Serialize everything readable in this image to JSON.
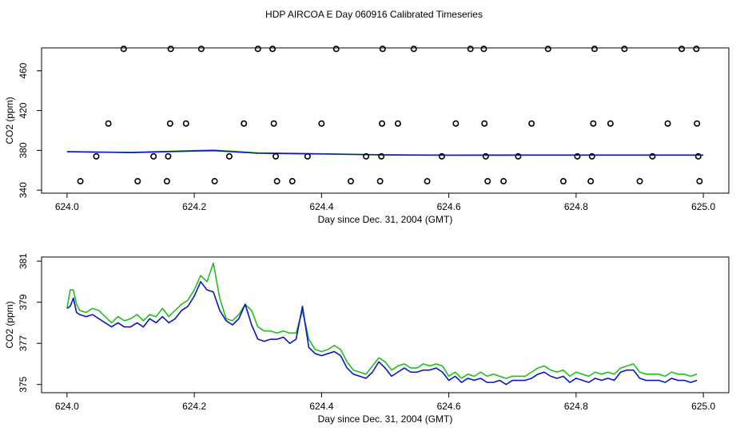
{
  "title": "HDP AIRCOA E  Day 060916  Calibrated Timeseries",
  "colors": {
    "green": "#1fbf1f",
    "blue": "#0a14c8",
    "black": "#000000"
  },
  "chart_data": [
    {
      "type": "line",
      "xlabel": "Day since Dec. 31, 2004 (GMT)",
      "ylabel": "CO2 (ppm)",
      "xlim": [
        624.0,
        625.0
      ],
      "ylim": [
        337,
        483
      ],
      "xticks": [
        624.0,
        624.2,
        624.4,
        624.6,
        624.8,
        625.0
      ],
      "xtick_labels": [
        "624.0",
        "624.2",
        "624.4",
        "624.6",
        "624.8",
        "625.0"
      ],
      "yticks": [
        340,
        380,
        420,
        460
      ],
      "ytick_labels": [
        "340",
        "380",
        "420",
        "460"
      ],
      "grid": false,
      "series": [
        {
          "color": "green",
          "x": [
            624.0,
            624.1,
            624.2,
            624.23,
            624.3,
            624.4,
            624.5,
            624.6,
            624.7,
            624.8,
            624.9,
            625.0
          ],
          "y": [
            378.7,
            378.0,
            379.8,
            380.3,
            377.5,
            376.6,
            375.6,
            375.3,
            375.4,
            375.4,
            375.4,
            375.4
          ]
        },
        {
          "color": "blue",
          "x": [
            624.0,
            624.1,
            624.2,
            624.23,
            624.3,
            624.4,
            624.5,
            624.6,
            624.7,
            624.8,
            624.9,
            625.0
          ],
          "y": [
            378.7,
            377.8,
            379.4,
            379.8,
            377.1,
            376.4,
            375.4,
            375.1,
            375.2,
            375.2,
            375.2,
            375.2
          ]
        }
      ],
      "points": {
        "marker": "open-circle",
        "x": [
          624.021,
          624.046,
          624.065,
          624.089,
          624.111,
          624.136,
          624.157,
          624.159,
          624.162,
          624.163,
          624.187,
          624.211,
          624.232,
          624.255,
          624.278,
          624.3,
          624.323,
          624.325,
          624.328,
          624.33,
          624.354,
          624.378,
          624.4,
          624.423,
          624.446,
          624.47,
          624.492,
          624.494,
          624.495,
          624.496,
          624.52,
          624.545,
          624.566,
          624.589,
          624.611,
          624.634,
          624.655,
          624.656,
          624.658,
          624.661,
          624.686,
          624.709,
          624.73,
          624.756,
          624.78,
          624.802,
          624.823,
          624.825,
          624.827,
          624.829,
          624.854,
          624.876,
          624.9,
          624.92,
          624.944,
          624.966,
          624.989,
          624.99,
          624.992,
          624.994
        ],
        "y": [
          349,
          374,
          407,
          482,
          349,
          374,
          349,
          374,
          407,
          482,
          407,
          482,
          349,
          374,
          407,
          482,
          482,
          407,
          374,
          349,
          349,
          374,
          407,
          482,
          349,
          374,
          349,
          374,
          407,
          482,
          407,
          482,
          349,
          374,
          407,
          482,
          482,
          407,
          374,
          349,
          349,
          374,
          407,
          482,
          349,
          374,
          349,
          374,
          407,
          482,
          407,
          482,
          349,
          374,
          407,
          482,
          482,
          407,
          374,
          349
        ]
      }
    },
    {
      "type": "line",
      "xlabel": "Day since Dec. 31, 2004 (GMT)",
      "ylabel": "CO2 (ppm)",
      "xlim": [
        624.0,
        625.0
      ],
      "ylim": [
        374.6,
        381.2
      ],
      "xticks": [
        624.0,
        624.2,
        624.4,
        624.6,
        624.8,
        625.0
      ],
      "xtick_labels": [
        "624.0",
        "624.2",
        "624.4",
        "624.6",
        "624.8",
        "625.0"
      ],
      "yticks": [
        375,
        377,
        379,
        381
      ],
      "ytick_labels": [
        "375",
        "377",
        "379",
        "381"
      ],
      "grid": false,
      "series": [
        {
          "color": "green",
          "x": [
            624.0,
            624.005,
            624.01,
            624.015,
            624.02,
            624.03,
            624.04,
            624.05,
            624.06,
            624.07,
            624.08,
            624.09,
            624.1,
            624.11,
            624.12,
            624.13,
            624.14,
            624.15,
            624.16,
            624.17,
            624.18,
            624.19,
            624.2,
            624.21,
            624.22,
            624.23,
            624.24,
            624.25,
            624.26,
            624.27,
            624.28,
            624.29,
            624.3,
            624.31,
            624.32,
            624.33,
            624.34,
            624.35,
            624.36,
            624.37,
            624.38,
            624.39,
            624.4,
            624.41,
            624.42,
            624.43,
            624.44,
            624.45,
            624.46,
            624.47,
            624.48,
            624.49,
            624.5,
            624.51,
            624.52,
            624.53,
            624.54,
            624.55,
            624.56,
            624.57,
            624.58,
            624.59,
            624.6,
            624.61,
            624.62,
            624.63,
            624.64,
            624.65,
            624.66,
            624.67,
            624.68,
            624.69,
            624.7,
            624.71,
            624.72,
            624.73,
            624.74,
            624.75,
            624.76,
            624.77,
            624.78,
            624.79,
            624.8,
            624.81,
            624.82,
            624.83,
            624.84,
            624.85,
            624.86,
            624.87,
            624.88,
            624.89,
            624.9,
            624.91,
            624.92,
            624.93,
            624.94,
            624.95,
            624.96,
            624.97,
            624.98,
            624.99
          ],
          "y": [
            378.7,
            379.6,
            379.6,
            378.9,
            378.6,
            378.5,
            378.7,
            378.6,
            378.3,
            378.0,
            378.3,
            378.1,
            378.2,
            378.4,
            378.1,
            378.4,
            378.3,
            378.7,
            378.3,
            378.6,
            378.9,
            379.1,
            379.6,
            380.3,
            380.0,
            380.9,
            379.2,
            378.2,
            378.1,
            378.4,
            378.9,
            378.6,
            377.8,
            377.6,
            377.6,
            377.5,
            377.6,
            377.5,
            377.5,
            378.6,
            377.2,
            376.7,
            376.6,
            376.7,
            376.9,
            376.7,
            376.1,
            375.7,
            375.6,
            375.5,
            375.9,
            376.3,
            376.1,
            375.7,
            375.9,
            376.0,
            375.8,
            375.8,
            376.0,
            375.9,
            376.0,
            375.9,
            375.4,
            375.6,
            375.3,
            375.5,
            375.4,
            375.6,
            375.4,
            375.5,
            375.4,
            375.3,
            375.4,
            375.4,
            375.4,
            375.6,
            375.8,
            375.9,
            375.7,
            375.6,
            375.7,
            375.4,
            375.6,
            375.5,
            375.4,
            375.6,
            375.5,
            375.6,
            375.5,
            375.8,
            375.9,
            376.0,
            375.6,
            375.5,
            375.5,
            375.5,
            375.4,
            375.6,
            375.5,
            375.5,
            375.4,
            375.5
          ]
        },
        {
          "color": "blue",
          "x": [
            624.0,
            624.005,
            624.01,
            624.015,
            624.02,
            624.03,
            624.04,
            624.05,
            624.06,
            624.07,
            624.08,
            624.09,
            624.1,
            624.11,
            624.12,
            624.13,
            624.14,
            624.15,
            624.16,
            624.17,
            624.18,
            624.19,
            624.2,
            624.21,
            624.22,
            624.23,
            624.24,
            624.25,
            624.26,
            624.27,
            624.28,
            624.29,
            624.3,
            624.31,
            624.32,
            624.33,
            624.34,
            624.35,
            624.36,
            624.37,
            624.38,
            624.39,
            624.4,
            624.41,
            624.42,
            624.43,
            624.44,
            624.45,
            624.46,
            624.47,
            624.48,
            624.49,
            624.5,
            624.51,
            624.52,
            624.53,
            624.54,
            624.55,
            624.56,
            624.57,
            624.58,
            624.59,
            624.6,
            624.61,
            624.62,
            624.63,
            624.64,
            624.65,
            624.66,
            624.67,
            624.68,
            624.69,
            624.7,
            624.71,
            624.72,
            624.73,
            624.74,
            624.75,
            624.76,
            624.77,
            624.78,
            624.79,
            624.8,
            624.81,
            624.82,
            624.83,
            624.84,
            624.85,
            624.86,
            624.87,
            624.88,
            624.89,
            624.9,
            624.91,
            624.92,
            624.93,
            624.94,
            624.95,
            624.96,
            624.97,
            624.98,
            624.99
          ],
          "y": [
            378.7,
            378.8,
            379.2,
            378.5,
            378.4,
            378.3,
            378.4,
            378.2,
            378.0,
            377.8,
            378.0,
            377.8,
            377.8,
            378.0,
            377.8,
            378.2,
            378.0,
            378.3,
            378.0,
            378.2,
            378.6,
            378.8,
            379.3,
            380.0,
            379.6,
            379.5,
            378.6,
            378.1,
            377.9,
            378.2,
            378.9,
            377.9,
            377.2,
            377.1,
            377.2,
            377.2,
            377.3,
            377.0,
            377.2,
            378.8,
            376.8,
            376.5,
            376.4,
            376.5,
            376.6,
            376.4,
            375.8,
            375.5,
            375.4,
            375.3,
            375.6,
            376.1,
            375.8,
            375.4,
            375.6,
            375.8,
            375.6,
            375.6,
            375.7,
            375.7,
            375.8,
            375.6,
            375.2,
            375.4,
            375.1,
            375.3,
            375.2,
            375.3,
            375.1,
            375.1,
            375.2,
            375.0,
            375.2,
            375.2,
            375.2,
            375.3,
            375.5,
            375.6,
            375.4,
            375.3,
            375.4,
            375.1,
            375.3,
            375.2,
            375.1,
            375.3,
            375.2,
            375.3,
            375.2,
            375.6,
            375.7,
            375.7,
            375.3,
            375.2,
            375.2,
            375.2,
            375.1,
            375.3,
            375.2,
            375.2,
            375.1,
            375.2
          ]
        }
      ]
    }
  ]
}
